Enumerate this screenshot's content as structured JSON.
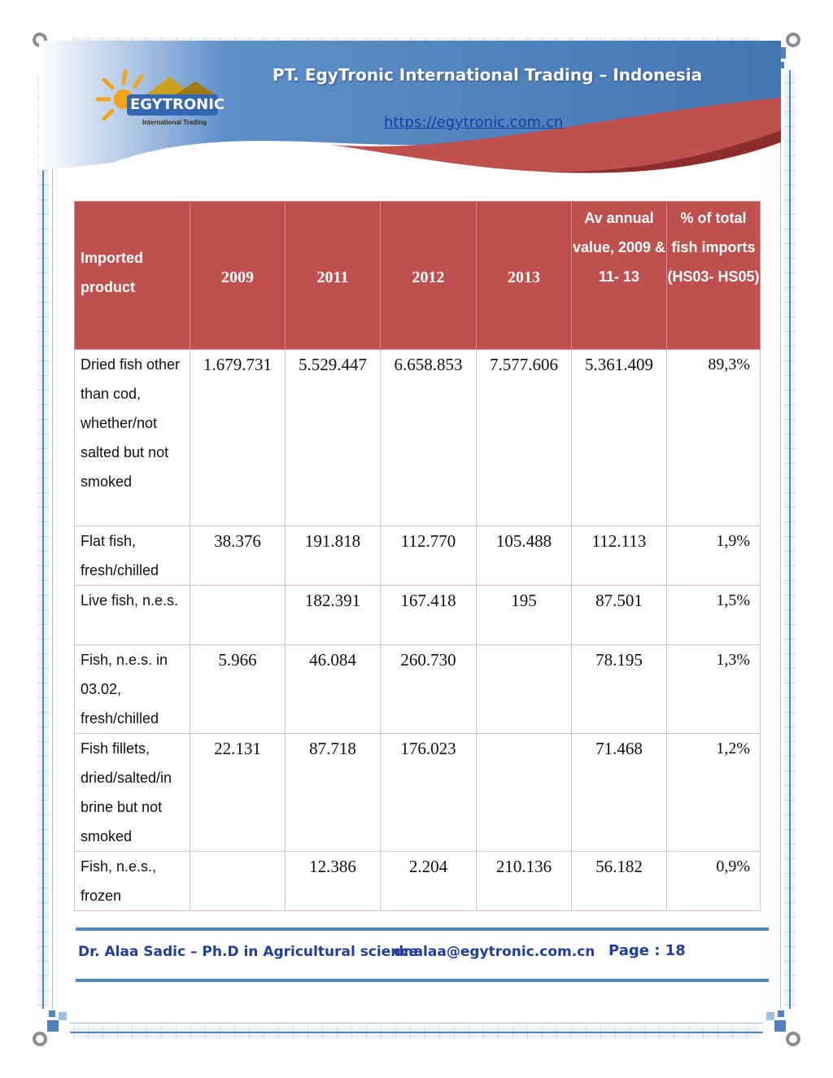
{
  "header": {
    "company": "PT. EgyTronic International Trading – Indonesia",
    "website": "https://egytronic.com.cn",
    "logo_text": "EGYTRONIC",
    "logo_subtitle": "International Trading"
  },
  "table": {
    "columns": {
      "product": "Imported product",
      "y2009": "2009",
      "y2011": "2011",
      "y2012": "2012",
      "y2013": "2013",
      "av_annual": "Av annual value, 2009 & 11- 13",
      "pct_total": "% of total fish imports (HS03- HS05)"
    },
    "rows": [
      {
        "product": " Dried fish other than cod, whether/not salted but not smoked",
        "y2009": "1.679.731",
        "y2011": "5.529.447",
        "y2012": "6.658.853",
        "y2013": "7.577.606",
        "av": "5.361.409",
        "pct": "89,3%"
      },
      {
        "product": "Flat fish, fresh/chilled",
        "y2009": "38.376",
        "y2011": "191.818",
        "y2012": "112.770",
        "y2013": "105.488",
        "av": "112.113",
        "pct": "1,9%"
      },
      {
        "product": "Live fish, n.e.s.",
        "y2009": "",
        "y2011": "182.391",
        "y2012": "167.418",
        "y2013": "195",
        "av": "87.501",
        "pct": "1,5%"
      },
      {
        "product": "Fish, n.e.s. in 03.02, fresh/chilled",
        "y2009": "5.966",
        "y2011": "46.084",
        "y2012": "260.730",
        "y2013": "",
        "av": "78.195",
        "pct": "1,3%"
      },
      {
        "product": "Fish fillets, dried/salted/in brine but not smoked",
        "y2009": "22.131",
        "y2011": "87.718",
        "y2012": "176.023",
        "y2013": "",
        "av": "71.468",
        "pct": "1,2%"
      },
      {
        "product": "Fish, n.e.s., frozen",
        "y2009": "",
        "y2011": "12.386",
        "y2012": "2.204",
        "y2013": "210.136",
        "av": "56.182",
        "pct": "0,9%"
      }
    ]
  },
  "footer": {
    "author": "Dr. Alaa Sadic – Ph.D in Agricultural science",
    "email": "dr.alaa@egytronic.com.cn",
    "page": "Page : 18"
  },
  "colors": {
    "header_fill": "#c0504d",
    "banner_blue": "#4f81bd",
    "banner_red": "#c0504d",
    "footer_text": "#1f3f9a"
  }
}
